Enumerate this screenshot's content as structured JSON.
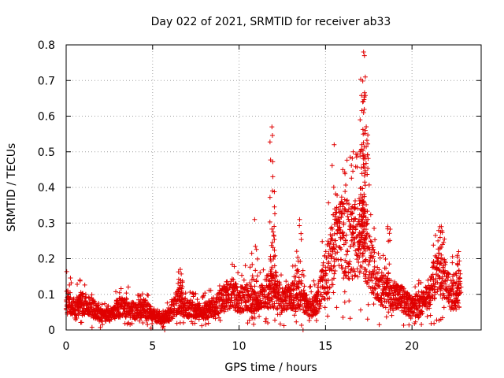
{
  "chart_data": {
    "type": "scatter",
    "title": "Day 022 of 2021, SRMTID for receiver ab33",
    "xlabel": "GPS time / hours",
    "ylabel": "SRMTID / TECUs",
    "xlim": [
      0,
      24
    ],
    "ylim": [
      0,
      0.8
    ],
    "xticks": [
      0,
      5,
      10,
      15,
      20
    ],
    "yticks": [
      0,
      0.1,
      0.2,
      0.3,
      0.4,
      0.5,
      0.6,
      0.7,
      0.8
    ],
    "xtick_labels": [
      "0",
      "5",
      "10",
      "15",
      "20"
    ],
    "ytick_labels": [
      "0",
      "0.1",
      "0.2",
      "0.3",
      "0.4",
      "0.5",
      "0.6",
      "0.7",
      "0.8"
    ],
    "grid": true,
    "marker": "plus",
    "color": "#e00000",
    "series": [
      {
        "name": "SRMTID",
        "envelope": [
          [
            0.0,
            0.08
          ],
          [
            0.5,
            0.06
          ],
          [
            1.0,
            0.07
          ],
          [
            1.5,
            0.06
          ],
          [
            2.0,
            0.04
          ],
          [
            2.5,
            0.04
          ],
          [
            3.0,
            0.06
          ],
          [
            3.5,
            0.06
          ],
          [
            4.0,
            0.05
          ],
          [
            4.5,
            0.06
          ],
          [
            5.0,
            0.04
          ],
          [
            5.5,
            0.03
          ],
          [
            6.0,
            0.04
          ],
          [
            6.5,
            0.08
          ],
          [
            7.0,
            0.06
          ],
          [
            7.5,
            0.05
          ],
          [
            8.0,
            0.05
          ],
          [
            8.5,
            0.06
          ],
          [
            9.0,
            0.08
          ],
          [
            9.5,
            0.1
          ],
          [
            10.0,
            0.08
          ],
          [
            10.5,
            0.09
          ],
          [
            11.0,
            0.07
          ],
          [
            11.5,
            0.1
          ],
          [
            12.0,
            0.11
          ],
          [
            12.5,
            0.08
          ],
          [
            13.0,
            0.09
          ],
          [
            13.5,
            0.1
          ],
          [
            14.0,
            0.06
          ],
          [
            14.5,
            0.07
          ],
          [
            15.0,
            0.15
          ],
          [
            15.5,
            0.22
          ],
          [
            16.0,
            0.26
          ],
          [
            16.5,
            0.23
          ],
          [
            17.0,
            0.25
          ],
          [
            17.5,
            0.2
          ],
          [
            18.0,
            0.12
          ],
          [
            18.5,
            0.1
          ],
          [
            19.0,
            0.09
          ],
          [
            19.5,
            0.08
          ],
          [
            20.0,
            0.06
          ],
          [
            20.5,
            0.07
          ],
          [
            21.0,
            0.09
          ],
          [
            21.5,
            0.17
          ],
          [
            22.0,
            0.12
          ],
          [
            22.5,
            0.09
          ],
          [
            22.8,
            0.1
          ]
        ],
        "peaks": [
          [
            0.8,
            0.14
          ],
          [
            6.6,
            0.17
          ],
          [
            10.9,
            0.31
          ],
          [
            11.9,
            0.57
          ],
          [
            11.95,
            0.43
          ],
          [
            11.93,
            0.39
          ],
          [
            13.5,
            0.31
          ],
          [
            15.5,
            0.52
          ],
          [
            16.0,
            0.45
          ],
          [
            17.2,
            0.78
          ],
          [
            17.25,
            0.77
          ],
          [
            17.3,
            0.71
          ],
          [
            17.15,
            0.64
          ],
          [
            17.2,
            0.61
          ],
          [
            17.3,
            0.56
          ],
          [
            17.1,
            0.52
          ],
          [
            17.0,
            0.5
          ],
          [
            16.6,
            0.5
          ],
          [
            18.6,
            0.29
          ],
          [
            21.7,
            0.29
          ],
          [
            22.7,
            0.22
          ]
        ],
        "outliers_low": [
          [
            5.7,
            0.0
          ],
          [
            13.7,
            0.0
          ]
        ]
      }
    ]
  }
}
